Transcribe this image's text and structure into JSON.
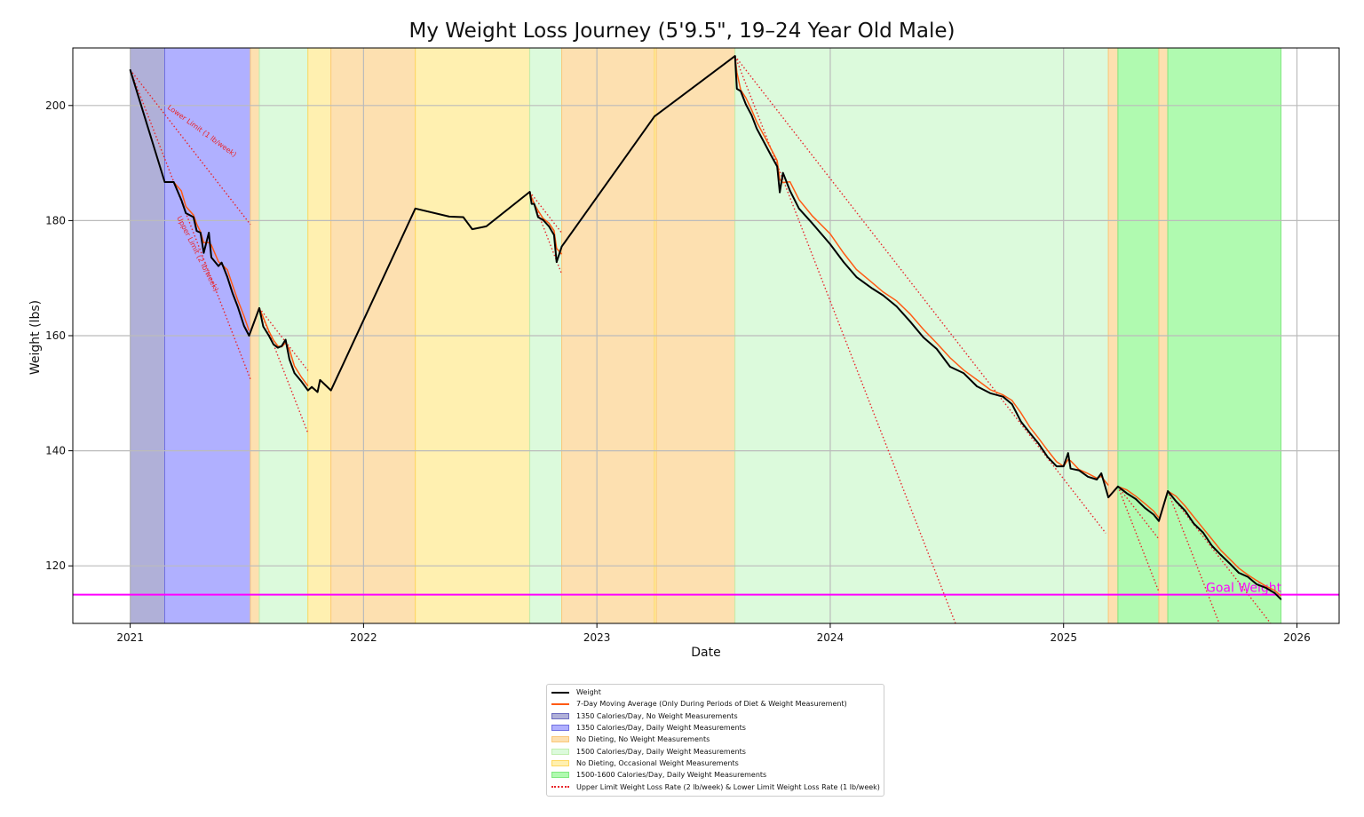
{
  "chart_data": {
    "type": "line",
    "title": "My Weight Loss Journey (5'9.5\", 19–24 Year Old Male)",
    "xlabel": "Date",
    "ylabel": "Weight (lbs)",
    "xlim": [
      "2020-10-03",
      "2026-03-08"
    ],
    "ylim": [
      110,
      210
    ],
    "x_ticks": [
      "2021",
      "2022",
      "2023",
      "2024",
      "2025",
      "2026"
    ],
    "y_ticks": [
      120,
      140,
      160,
      180,
      200
    ],
    "grid": true,
    "legend_placement": "below",
    "colors": {
      "weight": "#000000",
      "moving_average": "#ff5a14",
      "rate_lines": "#e8262b",
      "goal": "#ff00ff"
    },
    "goal": {
      "value": 115,
      "label": "Goal Weight"
    },
    "annotations": {
      "lower": "Lower Limit (1 lb/week)",
      "upper": "Upper Limit (2 lb/week)"
    },
    "phases": [
      {
        "key": "p1",
        "label": "1350 Calories/Day, No Weight Measurements",
        "color": "#b0b0d8",
        "edge": "#6b6bc0"
      },
      {
        "key": "p2",
        "label": "1350 Calories/Day, Daily Weight Measurements",
        "color": "#b0b0ff",
        "edge": "#7070e0"
      },
      {
        "key": "p3",
        "label": "No Dieting, No Weight Measurements",
        "color": "#fde0b0",
        "edge": "#fbc87a"
      },
      {
        "key": "p4",
        "label": "1500 Calories/Day, Daily Weight Measurements",
        "color": "#dcfadc",
        "edge": "#c0eeb0"
      },
      {
        "key": "p5",
        "label": "No Dieting, Occasional Weight Measurements",
        "color": "#fff0b0",
        "edge": "#ffd860"
      },
      {
        "key": "p6",
        "label": "1500-1600 Calories/Day, Daily Weight Measurements",
        "color": "#b0fab0",
        "edge": "#80e880"
      }
    ],
    "bands": [
      {
        "phase": "p1",
        "start": "2021-01-01",
        "end": "2021-02-24"
      },
      {
        "phase": "p2",
        "start": "2021-02-24",
        "end": "2021-07-08"
      },
      {
        "phase": "p3",
        "start": "2021-07-08",
        "end": "2021-07-22"
      },
      {
        "phase": "p4",
        "start": "2021-07-22",
        "end": "2021-10-06"
      },
      {
        "phase": "p5",
        "start": "2021-10-06",
        "end": "2021-11-11"
      },
      {
        "phase": "p3",
        "start": "2021-11-11",
        "end": "2022-03-23"
      },
      {
        "phase": "p5",
        "start": "2022-03-23",
        "end": "2022-09-18"
      },
      {
        "phase": "p4",
        "start": "2022-09-18",
        "end": "2022-11-07"
      },
      {
        "phase": "p3",
        "start": "2022-11-07",
        "end": "2023-04-01"
      },
      {
        "phase": "p5",
        "start": "2023-04-01",
        "end": "2023-04-04"
      },
      {
        "phase": "p3",
        "start": "2023-04-04",
        "end": "2023-08-05"
      },
      {
        "phase": "p4",
        "start": "2023-08-05",
        "end": "2025-03-12"
      },
      {
        "phase": "p3",
        "start": "2025-03-12",
        "end": "2025-03-27"
      },
      {
        "phase": "p6",
        "start": "2025-03-27",
        "end": "2025-05-30"
      },
      {
        "phase": "p3",
        "start": "2025-05-30",
        "end": "2025-06-13"
      },
      {
        "phase": "p6",
        "start": "2025-06-13",
        "end": "2025-12-07"
      }
    ],
    "series": [
      {
        "name": "Weight",
        "points": [
          [
            "2021-01-01",
            206.2
          ],
          [
            "2021-02-24",
            186.7
          ],
          [
            "2021-03-10",
            186.7
          ],
          [
            "2021-03-22",
            183.6
          ],
          [
            "2021-03-29",
            181.3
          ],
          [
            "2021-04-10",
            180.6
          ],
          [
            "2021-04-15",
            178.2
          ],
          [
            "2021-04-21",
            177.9
          ],
          [
            "2021-04-26",
            174.4
          ],
          [
            "2021-05-04",
            177.9
          ],
          [
            "2021-05-08",
            173.6
          ],
          [
            "2021-05-19",
            172.1
          ],
          [
            "2021-05-24",
            172.7
          ],
          [
            "2021-06-02",
            170.2
          ],
          [
            "2021-06-10",
            167.4
          ],
          [
            "2021-06-18",
            165.1
          ],
          [
            "2021-06-28",
            161.7
          ],
          [
            "2021-07-06",
            160.0
          ],
          [
            "2021-07-22",
            164.8
          ],
          [
            "2021-07-28",
            161.6
          ],
          [
            "2021-08-06",
            160.0
          ],
          [
            "2021-08-13",
            158.5
          ],
          [
            "2021-08-20",
            157.9
          ],
          [
            "2021-08-26",
            158.2
          ],
          [
            "2021-09-01",
            159.3
          ],
          [
            "2021-09-07",
            155.9
          ],
          [
            "2021-09-15",
            153.5
          ],
          [
            "2021-09-26",
            152.0
          ],
          [
            "2021-10-06",
            150.5
          ],
          [
            "2021-10-12",
            151.1
          ],
          [
            "2021-10-21",
            150.2
          ],
          [
            "2021-10-25",
            152.3
          ],
          [
            "2021-11-11",
            150.5
          ],
          [
            "2022-03-23",
            182.1
          ],
          [
            "2022-05-15",
            180.7
          ],
          [
            "2022-06-06",
            180.6
          ],
          [
            "2022-06-20",
            178.5
          ],
          [
            "2022-07-12",
            179.0
          ],
          [
            "2022-09-18",
            185.0
          ],
          [
            "2022-09-21",
            182.9
          ],
          [
            "2022-09-25",
            182.9
          ],
          [
            "2022-10-01",
            180.6
          ],
          [
            "2022-10-09",
            180.1
          ],
          [
            "2022-10-18",
            179.0
          ],
          [
            "2022-10-26",
            177.5
          ],
          [
            "2022-10-30",
            172.8
          ],
          [
            "2022-11-07",
            175.5
          ],
          [
            "2023-04-01",
            198.1
          ],
          [
            "2023-08-05",
            208.6
          ],
          [
            "2023-08-08",
            202.9
          ],
          [
            "2023-08-14",
            202.5
          ],
          [
            "2023-08-22",
            200.2
          ],
          [
            "2023-08-31",
            198.3
          ],
          [
            "2023-09-08",
            196.0
          ],
          [
            "2023-09-19",
            193.7
          ],
          [
            "2023-09-30",
            191.4
          ],
          [
            "2023-10-10",
            189.4
          ],
          [
            "2023-10-14",
            184.9
          ],
          [
            "2023-10-19",
            188.3
          ],
          [
            "2023-10-30",
            185.2
          ],
          [
            "2023-11-13",
            182.1
          ],
          [
            "2023-12-04",
            179.5
          ],
          [
            "2024-01-01",
            175.9
          ],
          [
            "2024-01-22",
            172.8
          ],
          [
            "2024-02-11",
            170.2
          ],
          [
            "2024-03-07",
            168.2
          ],
          [
            "2024-03-24",
            167.0
          ],
          [
            "2024-04-14",
            165.1
          ],
          [
            "2024-05-05",
            162.5
          ],
          [
            "2024-05-26",
            159.7
          ],
          [
            "2024-06-16",
            157.7
          ],
          [
            "2024-07-07",
            154.6
          ],
          [
            "2024-07-28",
            153.5
          ],
          [
            "2024-08-18",
            151.2
          ],
          [
            "2024-09-08",
            150.0
          ],
          [
            "2024-09-28",
            149.4
          ],
          [
            "2024-10-12",
            148.1
          ],
          [
            "2024-10-26",
            145.1
          ],
          [
            "2024-11-09",
            143.1
          ],
          [
            "2024-11-23",
            141.2
          ],
          [
            "2024-12-07",
            138.9
          ],
          [
            "2024-12-21",
            137.3
          ],
          [
            "2025-01-01",
            137.3
          ],
          [
            "2025-01-08",
            139.6
          ],
          [
            "2025-01-12",
            136.9
          ],
          [
            "2025-01-25",
            136.6
          ],
          [
            "2025-02-08",
            135.5
          ],
          [
            "2025-02-22",
            135.0
          ],
          [
            "2025-03-01",
            136.1
          ],
          [
            "2025-03-12",
            131.9
          ],
          [
            "2025-03-27",
            133.8
          ],
          [
            "2025-04-10",
            132.6
          ],
          [
            "2025-04-24",
            131.6
          ],
          [
            "2025-05-08",
            130.1
          ],
          [
            "2025-05-22",
            128.9
          ],
          [
            "2025-05-30",
            127.8
          ],
          [
            "2025-06-13",
            133.0
          ],
          [
            "2025-06-26",
            131.2
          ],
          [
            "2025-07-10",
            129.6
          ],
          [
            "2025-07-24",
            127.3
          ],
          [
            "2025-08-07",
            125.8
          ],
          [
            "2025-08-21",
            123.5
          ],
          [
            "2025-09-04",
            121.9
          ],
          [
            "2025-09-18",
            120.4
          ],
          [
            "2025-10-02",
            118.8
          ],
          [
            "2025-10-16",
            118.1
          ],
          [
            "2025-10-30",
            116.8
          ],
          [
            "2025-11-13",
            116.2
          ],
          [
            "2025-11-27",
            115.3
          ],
          [
            "2025-12-07",
            114.2
          ]
        ]
      },
      {
        "name": "7-Day Moving Average (Only During Periods of Diet & Weight Measurement)",
        "periods": [
          [
            "2021-02-24",
            "2021-07-06"
          ],
          [
            "2021-07-22",
            "2021-10-06"
          ],
          [
            "2022-09-18",
            "2022-11-07"
          ],
          [
            "2023-08-05",
            "2025-03-12"
          ],
          [
            "2025-03-27",
            "2025-05-30"
          ],
          [
            "2025-06-13",
            "2025-12-07"
          ]
        ]
      }
    ],
    "rate_lines": {
      "name": "Upper Limit Weight Loss Rate (2 lb/week) & Lower Limit Weight Loss Rate (1 lb/week)",
      "rates_lb_per_week": [
        1,
        2
      ],
      "segments": [
        {
          "start": "2021-01-01",
          "weight": 206.2,
          "end": "2021-07-08"
        },
        {
          "start": "2021-07-22",
          "weight": 164.8,
          "end": "2021-10-06"
        },
        {
          "start": "2022-09-18",
          "weight": 185.0,
          "end": "2022-11-07"
        },
        {
          "start": "2023-08-05",
          "weight": 208.6,
          "end": "2025-03-08"
        },
        {
          "start": "2025-03-27",
          "weight": 133.8,
          "end": "2025-05-30"
        },
        {
          "start": "2025-06-13",
          "weight": 133.0,
          "end": "2025-12-07"
        }
      ]
    },
    "legend": [
      {
        "label": "Weight",
        "kind": "line"
      },
      {
        "label": "7-Day Moving Average (Only During Periods of Diet & Weight Measurement)",
        "kind": "ma"
      },
      {
        "label": "1350 Calories/Day, No Weight Measurements",
        "kind": "p1"
      },
      {
        "label": "1350 Calories/Day, Daily Weight Measurements",
        "kind": "p2"
      },
      {
        "label": "No Dieting, No Weight Measurements",
        "kind": "p3"
      },
      {
        "label": "1500 Calories/Day, Daily Weight Measurements",
        "kind": "p4"
      },
      {
        "label": "No Dieting, Occasional Weight Measurements",
        "kind": "p5"
      },
      {
        "label": "1500-1600 Calories/Day, Daily Weight Measurements",
        "kind": "p6"
      },
      {
        "label": "Upper Limit Weight Loss Rate (2 lb/week) & Lower Limit Weight Loss Rate (1 lb/week)",
        "kind": "dots"
      }
    ]
  }
}
